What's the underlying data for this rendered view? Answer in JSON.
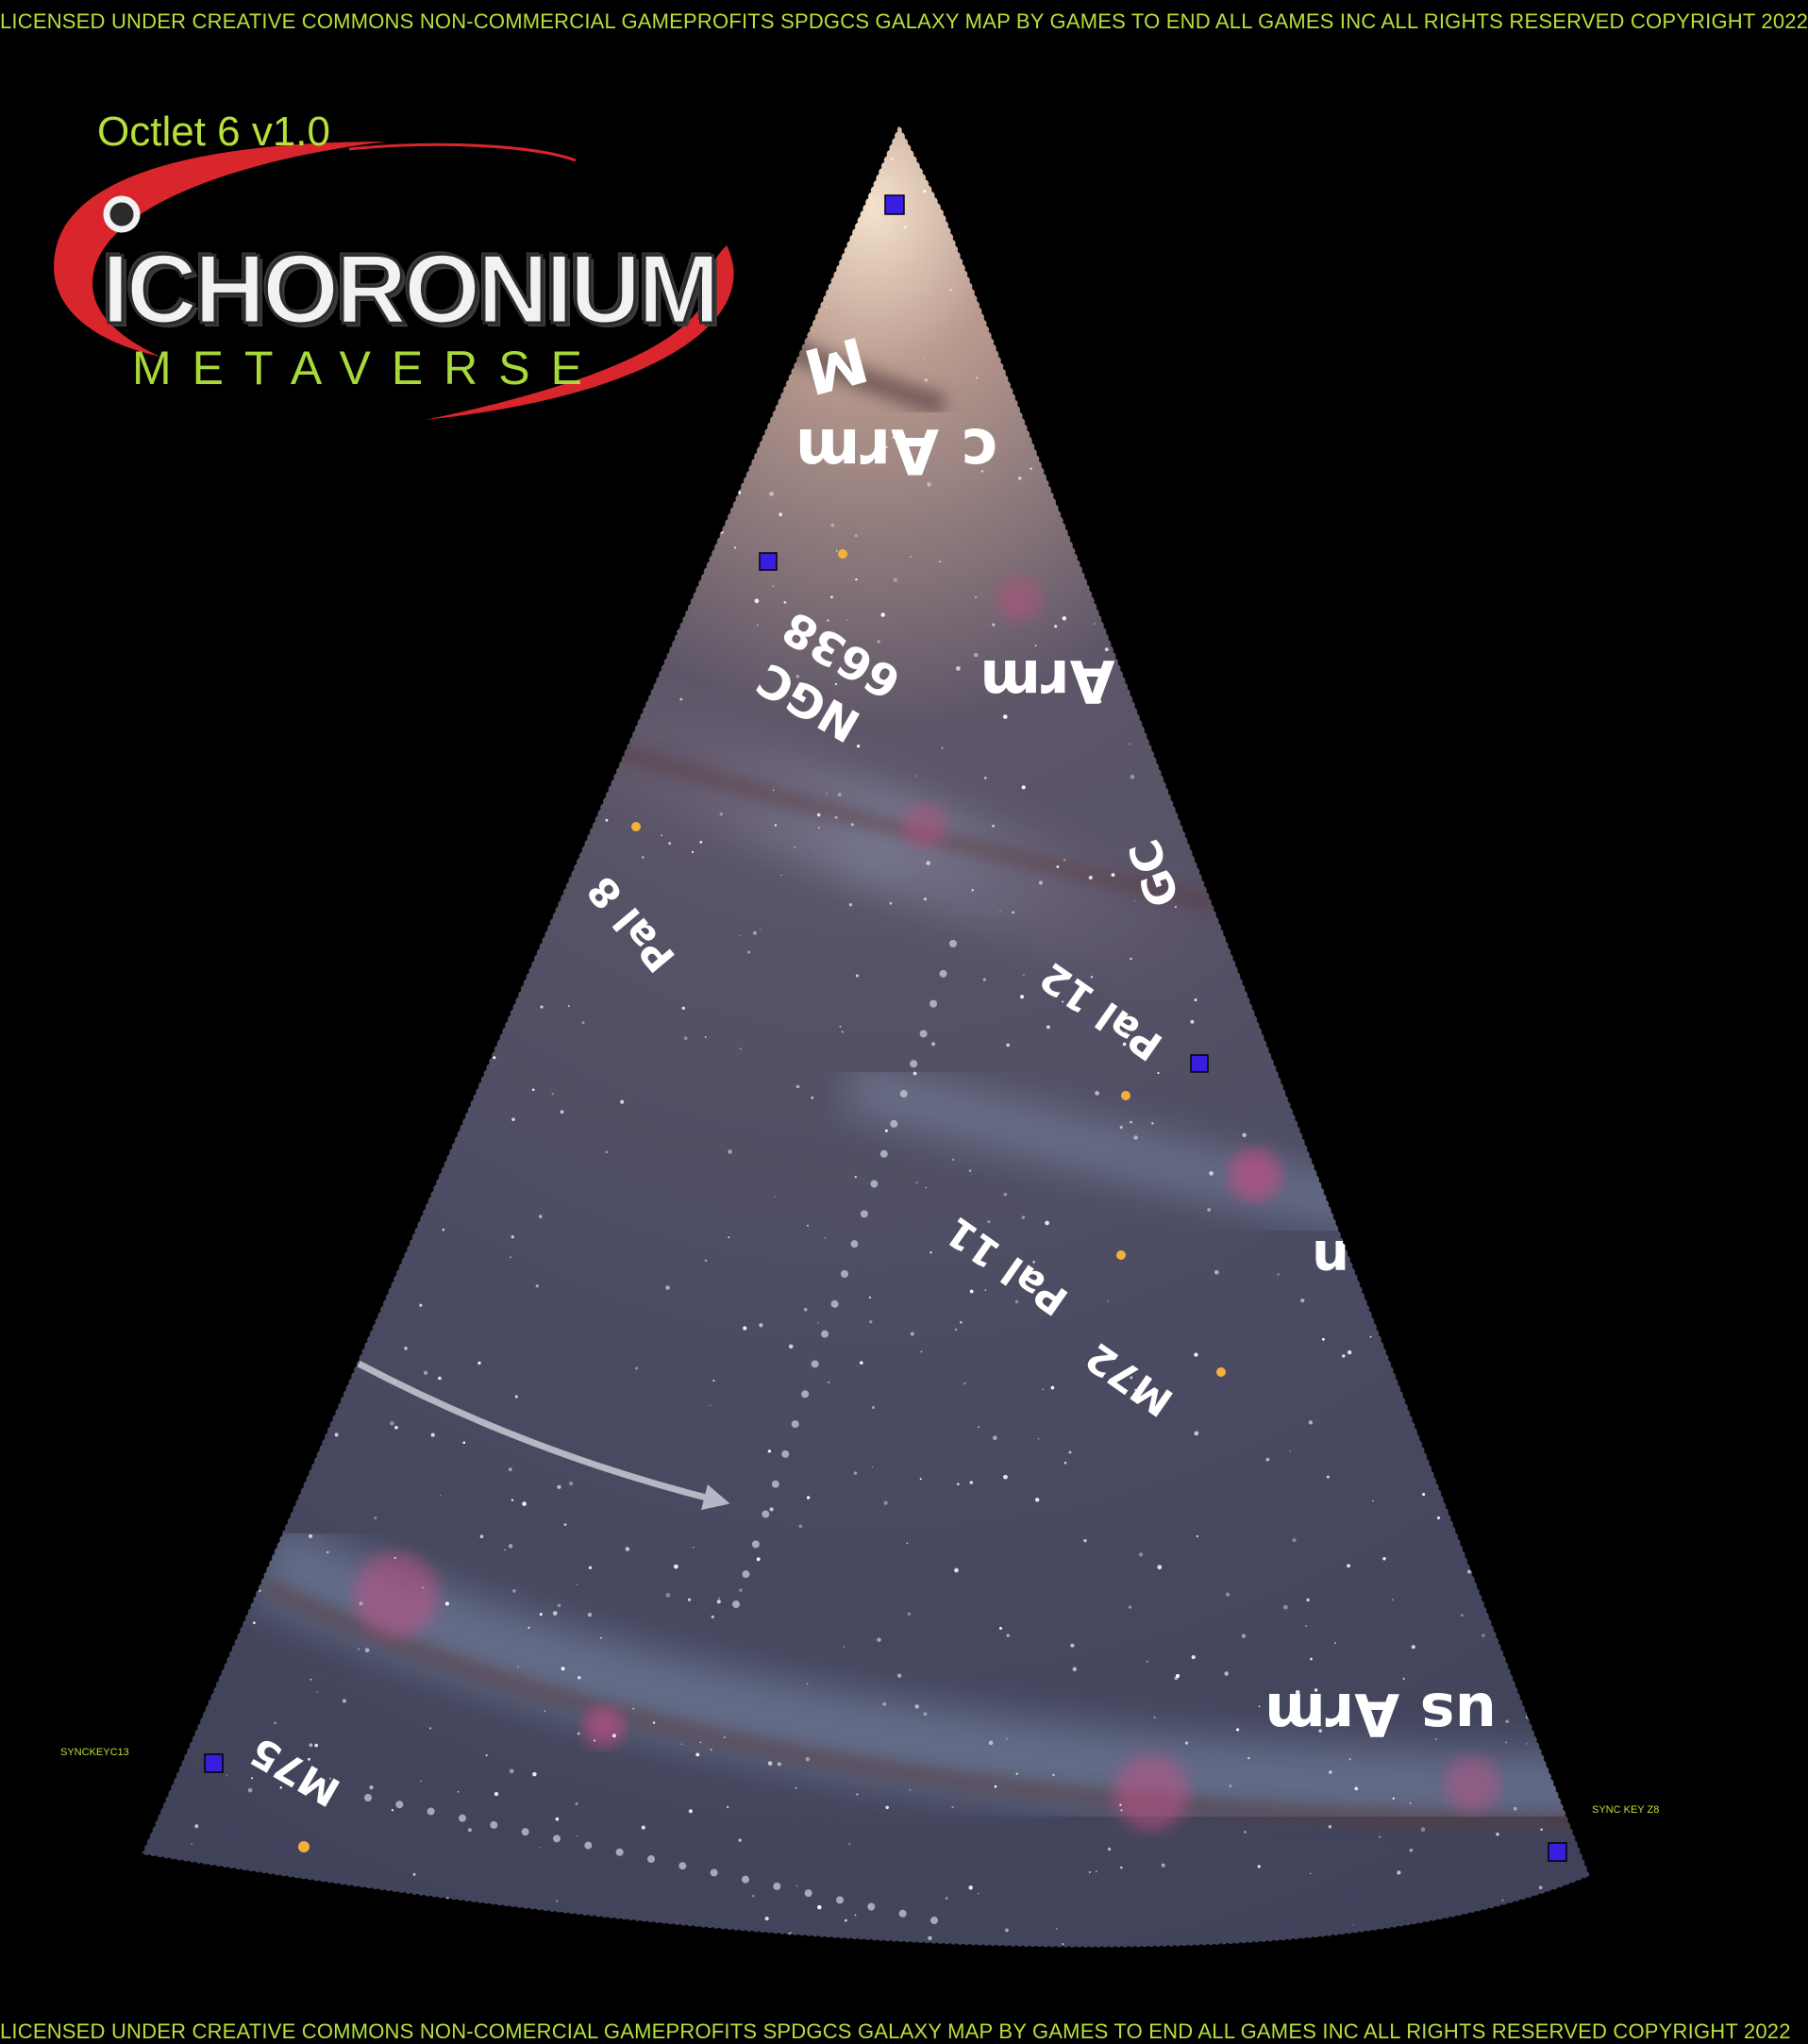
{
  "license": {
    "top": "LICENSED UNDER CREATIVE COMMONS NON-COMMERCIAL GAMEPROFITS SPDGCS GALAXY MAP BY GAMES TO END ALL GAMES INC ALL RIGHTS RESERVED  COPYRIGHT 2022",
    "bottom": "LICENSED UNDER CREATIVE COMMONS NON-COMERCIAL GAMEPROFITS SPDGCS GALAXY MAP BY GAMES TO END ALL GAMES  INC ALL RIGHTS RESERVED  COPYRIGHT 2022"
  },
  "logo": {
    "octlet": "Octlet 6 v1.0",
    "name": "ICHORONIUM",
    "subtitle": "METAVERSE",
    "accent_color": "#d8262c",
    "text_color": "#b7e03a"
  },
  "map": {
    "labels": {
      "arm_top": "c Arm",
      "arm_top_partial": "M",
      "arm_mid": "Arm",
      "arm_bottom": "us Arm",
      "ngc6638_line1": "NGC",
      "ngc6638_line2": "6638",
      "ngc_partial": "GC",
      "pal8": "Pal 8",
      "pal12": "Pal 12",
      "pal11": "Pal 11",
      "m72": "M72",
      "m75": "M75",
      "right_partial": "n"
    },
    "sync_keys": {
      "c13": "SYNCKEYC13",
      "z8": "SYNC KEY Z8"
    },
    "marker_color": "#3a1ee0",
    "arrow_color": "#c7cbd6"
  }
}
